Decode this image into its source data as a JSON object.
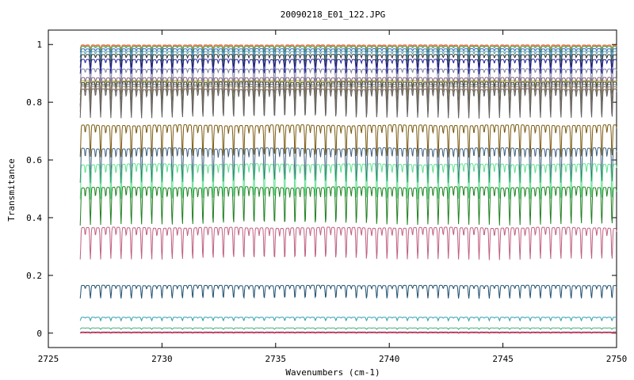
{
  "chart_data": {
    "type": "line",
    "title": "20090218_E01_122.JPG",
    "xlabel": "Wavenumbers (cm-1)",
    "ylabel": "Transmitance",
    "xlim": [
      2725,
      2750
    ],
    "ylim": [
      -0.05,
      1.05
    ],
    "x_ticks": [
      2725,
      2730,
      2735,
      2740,
      2745,
      2750
    ],
    "y_ticks": [
      0,
      0.2,
      0.4,
      0.6,
      0.8,
      1
    ],
    "x_tick_labels": [
      "2725",
      "2730",
      "2735",
      "2740",
      "2745",
      "2750"
    ],
    "y_tick_labels": [
      "0",
      "0.2",
      "0.4",
      "0.6",
      "0.8",
      "1"
    ],
    "grid": false,
    "legend": "none",
    "x_range": [
      2726.4,
      2750
    ],
    "line_period_cm1": 0.45,
    "series": [
      {
        "color": "#d94040",
        "baseline": 0.998,
        "dip": 0.012
      },
      {
        "color": "#e0a030",
        "baseline": 0.996,
        "dip": 0.015
      },
      {
        "color": "#40a060",
        "baseline": 0.993,
        "dip": 0.02
      },
      {
        "color": "#3060c0",
        "baseline": 0.985,
        "dip": 0.03
      },
      {
        "color": "#50a0a0",
        "baseline": 0.976,
        "dip": 0.035
      },
      {
        "color": "#303030",
        "baseline": 0.965,
        "dip": 0.045
      },
      {
        "color": "#2020a0",
        "baseline": 0.948,
        "dip": 0.05
      },
      {
        "color": "#8080a0",
        "baseline": 0.915,
        "dip": 0.05
      },
      {
        "color": "#806080",
        "baseline": 0.885,
        "dip": 0.06
      },
      {
        "color": "#c0c040",
        "baseline": 0.875,
        "dip": 0.07
      },
      {
        "color": "#303030",
        "baseline": 0.87,
        "dip": 0.08
      },
      {
        "color": "#708090",
        "baseline": 0.862,
        "dip": 0.08
      },
      {
        "color": "#a08060",
        "baseline": 0.855,
        "dip": 0.09
      },
      {
        "color": "#606060",
        "baseline": 0.845,
        "dip": 0.1
      },
      {
        "color": "#7a5a10",
        "baseline": 0.72,
        "dip": 0.11
      },
      {
        "color": "#406080",
        "baseline": 0.64,
        "dip": 0.12
      },
      {
        "color": "#60e090",
        "baseline": 0.585,
        "dip": 0.12
      },
      {
        "color": "#208020",
        "baseline": 0.505,
        "dip": 0.13
      },
      {
        "color": "#c06080",
        "baseline": 0.365,
        "dip": 0.11
      },
      {
        "color": "#205070",
        "baseline": 0.165,
        "dip": 0.045
      },
      {
        "color": "#30a0b0",
        "baseline": 0.055,
        "dip": 0.012
      },
      {
        "color": "#40b070",
        "baseline": 0.018,
        "dip": 0.005
      },
      {
        "color": "#a040a0",
        "baseline": 0.004,
        "dip": 0.002
      },
      {
        "color": "#c03030",
        "baseline": 0.001,
        "dip": 0.001
      }
    ]
  }
}
